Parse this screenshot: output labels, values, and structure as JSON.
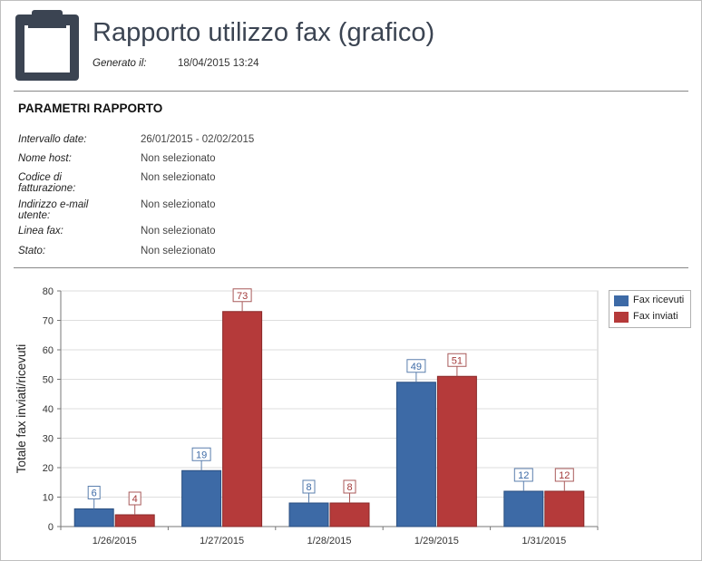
{
  "header": {
    "title": "Rapporto utilizzo fax (grafico)",
    "generated_label": "Generato il:",
    "generated_value": "18/04/2015 13:24",
    "icon": "clipboard-icon"
  },
  "parameters": {
    "heading": "PARAMETRI RAPPORTO",
    "items": [
      {
        "label": "Intervallo date:",
        "value": "26/01/2015 - 02/02/2015"
      },
      {
        "label": "Nome host:",
        "value": "Non selezionato"
      },
      {
        "label": "Codice di fatturazione:",
        "value": "Non selezionato"
      },
      {
        "label": "Indirizzo e-mail utente:",
        "value": "Non selezionato"
      },
      {
        "label": "Linea fax:",
        "value": "Non selezionato"
      },
      {
        "label": "Stato:",
        "value": "Non selezionato"
      }
    ]
  },
  "chart_data": {
    "type": "bar",
    "categories": [
      "1/26/2015",
      "1/27/2015",
      "1/28/2015",
      "1/29/2015",
      "1/31/2015"
    ],
    "series": [
      {
        "name": "Fax ricevuti",
        "values": [
          6,
          19,
          8,
          49,
          12
        ],
        "color": "#3d6aa6"
      },
      {
        "name": "Fax inviati",
        "values": [
          4,
          73,
          8,
          51,
          12
        ],
        "color": "#b53a3a"
      }
    ],
    "ylabel": "Totale fax inviati/ricevuti",
    "xlabel": "",
    "ylim": [
      0,
      80
    ],
    "yticks": [
      0,
      10,
      20,
      30,
      40,
      50,
      60,
      70,
      80
    ],
    "grid": true,
    "legend_position": "top-right",
    "data_labels": true
  }
}
